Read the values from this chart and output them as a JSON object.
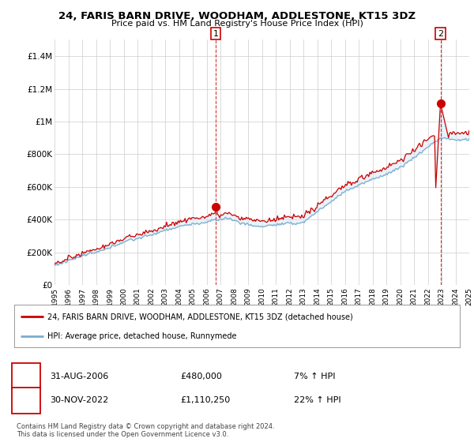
{
  "title": "24, FARIS BARN DRIVE, WOODHAM, ADDLESTONE, KT15 3DZ",
  "subtitle": "Price paid vs. HM Land Registry's House Price Index (HPI)",
  "ylim": [
    0,
    1500000
  ],
  "yticks": [
    0,
    200000,
    400000,
    600000,
    800000,
    1000000,
    1200000,
    1400000
  ],
  "ytick_labels": [
    "£0",
    "£200K",
    "£400K",
    "£600K",
    "£800K",
    "£1M",
    "£1.2M",
    "£1.4M"
  ],
  "xstart": 1995,
  "xend": 2025,
  "transaction1": {
    "date_num": 2006.667,
    "price": 480000,
    "label": "1",
    "date_str": "31-AUG-2006",
    "price_str": "£480,000",
    "hpi_str": "7% ↑ HPI"
  },
  "transaction2": {
    "date_num": 2022.917,
    "price": 1110250,
    "label": "2",
    "date_str": "30-NOV-2022",
    "price_str": "£1,110,250",
    "hpi_str": "22% ↑ HPI"
  },
  "red_line_color": "#cc0000",
  "blue_line_color": "#7aadcf",
  "fill_color": "#d6e8f5",
  "dashed_line_color": "#cc0000",
  "legend_label_red": "24, FARIS BARN DRIVE, WOODHAM, ADDLESTONE, KT15 3DZ (detached house)",
  "legend_label_blue": "HPI: Average price, detached house, Runnymede",
  "footer1": "Contains HM Land Registry data © Crown copyright and database right 2024.",
  "footer2": "This data is licensed under the Open Government Licence v3.0.",
  "background_color": "#ffffff",
  "grid_color": "#cccccc"
}
